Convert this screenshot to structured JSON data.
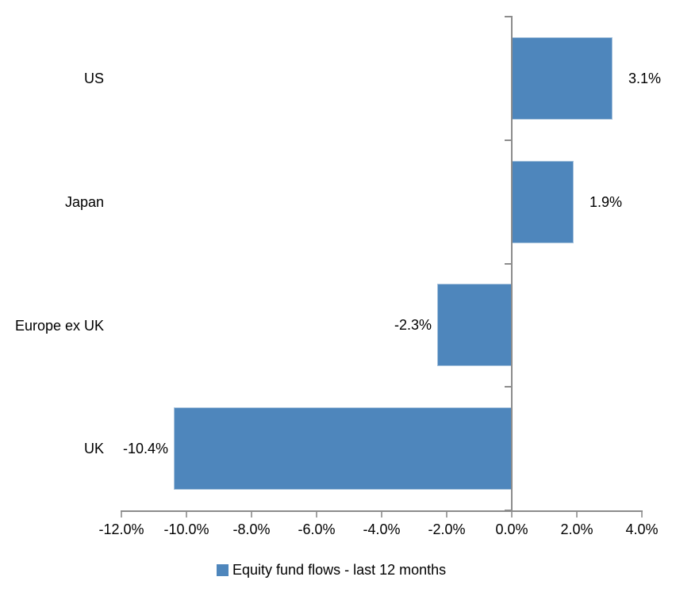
{
  "chart_data": {
    "type": "bar",
    "orientation": "horizontal",
    "categories": [
      "US",
      "Japan",
      "Europe ex UK",
      "UK"
    ],
    "values": [
      3.1,
      1.9,
      -2.3,
      -10.4
    ],
    "data_labels": [
      "3.1%",
      "1.9%",
      "-2.3%",
      "-10.4%"
    ],
    "series": [
      {
        "name": "Equity fund flows - last 12 months",
        "values": [
          3.1,
          1.9,
          -2.3,
          -10.4
        ]
      }
    ],
    "title": "",
    "xlabel": "",
    "ylabel": "",
    "xlim": [
      -12.0,
      4.0
    ],
    "x_tick_step": 2.0,
    "x_tick_labels": [
      "-12.0%",
      "-10.0%",
      "-8.0%",
      "-6.0%",
      "-4.0%",
      "-2.0%",
      "0.0%",
      "2.0%",
      "4.0%"
    ],
    "grid": false,
    "legend_position": "bottom",
    "colors": {
      "bar_fill": "#4E86BC",
      "bar_border": "#A9C4DD",
      "axis_line": "#8C8C8C",
      "tick_mark": "#A3A3A3",
      "text": "#000000"
    }
  },
  "legend": {
    "label": "Equity fund flows - last 12 months"
  }
}
